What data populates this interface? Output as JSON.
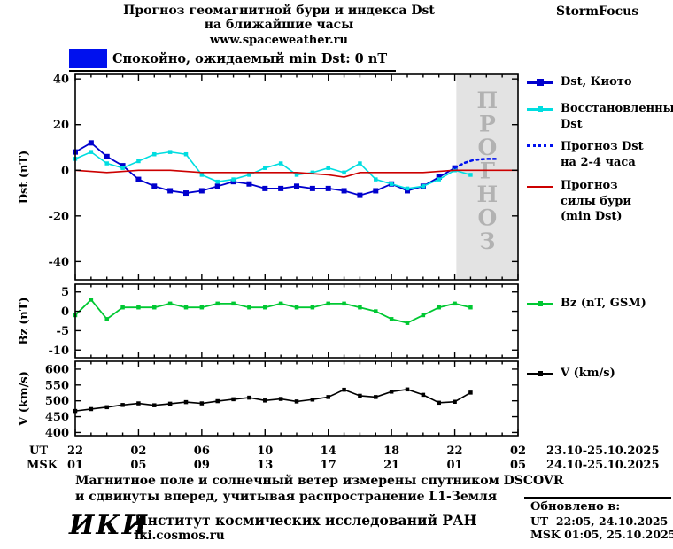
{
  "header": {
    "title_line1": "Прогноз геомагнитной бури и индекса Dst",
    "title_line2": "на ближайшие часы",
    "site": "www.spaceweather.ru",
    "brand": "StormFocus"
  },
  "status_legend": {
    "label": "Спокойно, ожидаемый min Dst: 0 nT",
    "color": "#0011ee"
  },
  "forecast_band": {
    "label": "ПРОГНОЗ",
    "color": "#e3e3e3",
    "text_color": "#b2b2b2"
  },
  "legend": {
    "dst_kyoto": "Dst, Киото",
    "dst_restored": "Восстановленный\nDst",
    "dst_forecast": "Прогноз Dst\nна 2-4 часа",
    "storm_forecast": "Прогноз\nсилы бури\n(min Dst)",
    "bz": "Bz (nT, GSM)",
    "v": "V (km/s)"
  },
  "axis": {
    "ut_label": "UT",
    "msk_label": "MSK",
    "ut_ticks": [
      "22",
      "02",
      "06",
      "10",
      "14",
      "18",
      "22",
      "02"
    ],
    "msk_ticks": [
      "01",
      "05",
      "09",
      "13",
      "17",
      "21",
      "01",
      "05"
    ],
    "ut_dates": "23.10-25.10.2025",
    "msk_dates": "24.10-25.10.2025"
  },
  "footer": {
    "note_line1": "Магнитное поле и солнечный ветер измерены спутником DSCOVR",
    "note_line2": "и сдвинуты вперед, учитывая распространение L1-Земля",
    "logo": "ИКИ",
    "institute": "Институт космических исследований РАН",
    "site": "iki.cosmos.ru",
    "updated_label": "Обновлено в:",
    "updated_ut": "UT  22:05, 24.10.2025",
    "updated_msk": "MSK 01:05, 25.10.2025"
  },
  "chart_data": [
    {
      "type": "line",
      "panel": "dst",
      "title": "Прогноз геомагнитной бури и индекса Dst на ближайшие часы",
      "ylabel": "Dst (nT)",
      "ylim": [
        -48,
        42
      ],
      "yticks": [
        40,
        20,
        0,
        -20,
        -40
      ],
      "xlim": [
        0,
        28
      ],
      "xticks": [
        0,
        4,
        8,
        12,
        16,
        20,
        24,
        28
      ],
      "x_axis_note": "hours since 22:00 UT 23.10.2025",
      "forecast_start_hour": 24.1,
      "series": [
        {
          "id": "dst-kyoto",
          "name": "Dst, Киото",
          "color": "#0000cd",
          "marker": true,
          "marker_size": 6,
          "width": 1.8,
          "x": [
            0,
            1,
            2,
            3,
            4,
            5,
            6,
            7,
            8,
            9,
            10,
            11,
            12,
            13,
            14,
            15,
            16,
            17,
            18,
            19,
            20,
            21,
            22,
            23,
            24
          ],
          "y": [
            8,
            12,
            6,
            2,
            -4,
            -7,
            -9,
            -10,
            -9,
            -7,
            -5,
            -6,
            -8,
            -8,
            -7,
            -8,
            -8,
            -9,
            -11,
            -9,
            -6,
            -9,
            -7,
            -3,
            1
          ]
        },
        {
          "id": "dst-restored",
          "name": "Восстановленный Dst",
          "color": "#00dde0",
          "marker": true,
          "marker_size": 4.5,
          "width": 1.6,
          "x": [
            0,
            1,
            2,
            3,
            4,
            5,
            6,
            7,
            8,
            9,
            10,
            11,
            12,
            13,
            14,
            15,
            16,
            17,
            18,
            19,
            20,
            21,
            22,
            23,
            24,
            25
          ],
          "y": [
            5,
            8,
            3,
            1,
            4,
            7,
            8,
            7,
            -2,
            -5,
            -4,
            -2,
            1,
            3,
            -2,
            -1,
            1,
            -1,
            3,
            -4,
            -6,
            -8,
            -7,
            -4,
            0,
            -2
          ]
        },
        {
          "id": "dst-forecast",
          "name": "Прогноз Dst на 2-4 часа",
          "color": "#0011ee",
          "style": "dotted",
          "x": [
            24,
            24.6,
            25.2,
            26,
            26.6
          ],
          "y": [
            1,
            3.2,
            4.5,
            5,
            5
          ]
        },
        {
          "id": "storm-forecast",
          "name": "Прогноз силы бури (min Dst)",
          "color": "#cc0000",
          "width": 1.6,
          "x": [
            0,
            2,
            4,
            6,
            8,
            10,
            12,
            14,
            16,
            17,
            18,
            20,
            22,
            24,
            26,
            28
          ],
          "y": [
            0,
            -1,
            0,
            0,
            -1,
            -1,
            -1,
            -1,
            -2,
            -3,
            -1,
            -1,
            -1,
            0,
            0,
            0
          ]
        }
      ]
    },
    {
      "type": "line",
      "panel": "bz",
      "ylabel": "Bz (nT)",
      "ylim": [
        -12,
        7
      ],
      "yticks": [
        5,
        0,
        -5,
        -10
      ],
      "series": [
        {
          "id": "bz",
          "name": "Bz (nT, GSM)",
          "color": "#00c832",
          "marker": true,
          "marker_size": 4.5,
          "width": 1.8,
          "x": [
            0,
            1,
            2,
            3,
            4,
            5,
            6,
            7,
            8,
            9,
            10,
            11,
            12,
            13,
            14,
            15,
            16,
            17,
            18,
            19,
            20,
            21,
            22,
            23,
            24,
            25
          ],
          "y": [
            -1,
            3,
            -2,
            1,
            1,
            1,
            2,
            1,
            1,
            2,
            2,
            1,
            1,
            2,
            1,
            1,
            2,
            2,
            1,
            0,
            -2,
            -3,
            -1,
            1,
            2,
            1
          ]
        }
      ]
    },
    {
      "type": "line",
      "panel": "v",
      "ylabel": "V (km/s)",
      "ylim": [
        390,
        625
      ],
      "yticks": [
        600,
        550,
        500,
        450,
        400
      ],
      "series": [
        {
          "id": "v",
          "name": "V (km/s)",
          "color": "#000000",
          "marker": true,
          "marker_size": 4.5,
          "width": 1.6,
          "x": [
            0,
            1,
            2,
            3,
            4,
            5,
            6,
            7,
            8,
            9,
            10,
            11,
            12,
            13,
            14,
            15,
            16,
            17,
            18,
            19,
            20,
            21,
            22,
            23,
            24,
            25
          ],
          "y": [
            468,
            474,
            480,
            487,
            492,
            486,
            491,
            496,
            492,
            499,
            505,
            510,
            501,
            506,
            498,
            504,
            512,
            535,
            516,
            512,
            529,
            536,
            519,
            494,
            497,
            526
          ]
        }
      ]
    }
  ]
}
